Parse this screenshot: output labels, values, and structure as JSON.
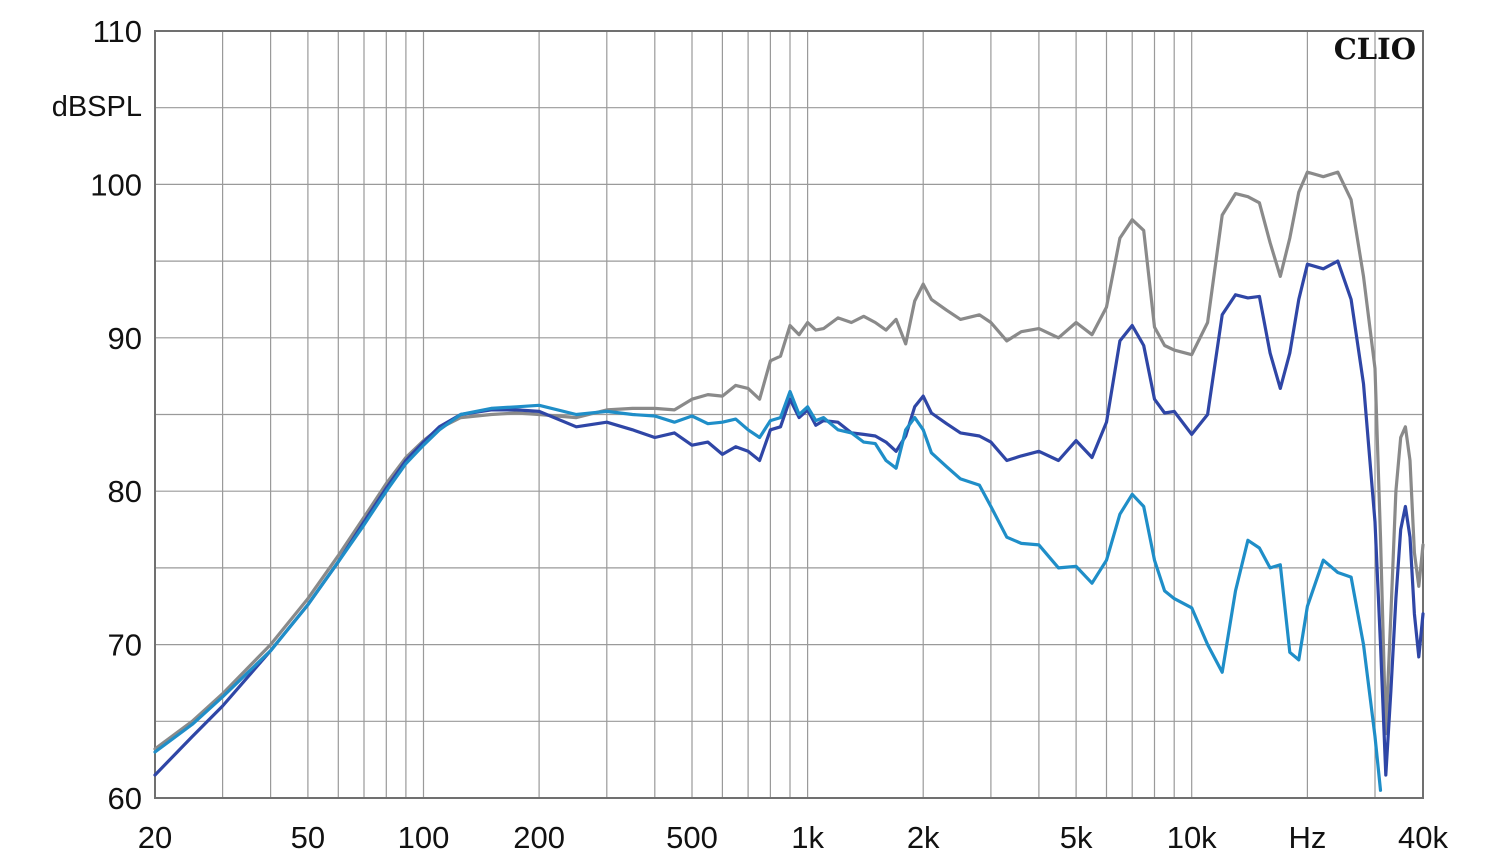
{
  "chart_data": {
    "type": "line",
    "brand": "CLIO",
    "ylabel": "dBSPL",
    "xunit_label": "Hz",
    "xscale": "log",
    "xlim": [
      20,
      40000
    ],
    "ylim": [
      60,
      110
    ],
    "grid": true,
    "x_tick_labels": [
      {
        "value": 20,
        "label": "20"
      },
      {
        "value": 50,
        "label": "50"
      },
      {
        "value": 100,
        "label": "100"
      },
      {
        "value": 200,
        "label": "200"
      },
      {
        "value": 500,
        "label": "500"
      },
      {
        "value": 1000,
        "label": "1k"
      },
      {
        "value": 2000,
        "label": "2k"
      },
      {
        "value": 5000,
        "label": "5k"
      },
      {
        "value": 10000,
        "label": "10k"
      },
      {
        "value": 20000,
        "label": "Hz"
      },
      {
        "value": 40000,
        "label": "40k"
      }
    ],
    "y_tick_labels": [
      {
        "value": 60,
        "label": "60"
      },
      {
        "value": 70,
        "label": "70"
      },
      {
        "value": 80,
        "label": "80"
      },
      {
        "value": 90,
        "label": "90"
      },
      {
        "value": 100,
        "label": "100"
      },
      {
        "value": 110,
        "label": "110"
      }
    ],
    "series": [
      {
        "color": "#8a8a8a",
        "points": [
          [
            20,
            63.2
          ],
          [
            25,
            65.0
          ],
          [
            30,
            66.8
          ],
          [
            40,
            70.0
          ],
          [
            50,
            73.0
          ],
          [
            60,
            75.8
          ],
          [
            70,
            78.3
          ],
          [
            80,
            80.5
          ],
          [
            90,
            82.2
          ],
          [
            100,
            83.3
          ],
          [
            110,
            84.1
          ],
          [
            125,
            84.8
          ],
          [
            150,
            85.0
          ],
          [
            175,
            85.1
          ],
          [
            200,
            85.0
          ],
          [
            250,
            84.8
          ],
          [
            300,
            85.3
          ],
          [
            350,
            85.4
          ],
          [
            400,
            85.4
          ],
          [
            450,
            85.3
          ],
          [
            500,
            86.0
          ],
          [
            550,
            86.3
          ],
          [
            600,
            86.2
          ],
          [
            650,
            86.9
          ],
          [
            700,
            86.7
          ],
          [
            750,
            86.0
          ],
          [
            800,
            88.5
          ],
          [
            850,
            88.8
          ],
          [
            900,
            90.8
          ],
          [
            950,
            90.2
          ],
          [
            1000,
            91.0
          ],
          [
            1050,
            90.5
          ],
          [
            1100,
            90.6
          ],
          [
            1200,
            91.3
          ],
          [
            1300,
            91.0
          ],
          [
            1400,
            91.4
          ],
          [
            1500,
            91.0
          ],
          [
            1600,
            90.5
          ],
          [
            1700,
            91.2
          ],
          [
            1800,
            89.6
          ],
          [
            1900,
            92.4
          ],
          [
            2000,
            93.5
          ],
          [
            2100,
            92.5
          ],
          [
            2300,
            91.8
          ],
          [
            2500,
            91.2
          ],
          [
            2800,
            91.5
          ],
          [
            3000,
            91.0
          ],
          [
            3300,
            89.8
          ],
          [
            3600,
            90.4
          ],
          [
            4000,
            90.6
          ],
          [
            4500,
            90.0
          ],
          [
            5000,
            91.0
          ],
          [
            5500,
            90.2
          ],
          [
            6000,
            92.0
          ],
          [
            6500,
            96.5
          ],
          [
            7000,
            97.7
          ],
          [
            7500,
            97.0
          ],
          [
            8000,
            90.7
          ],
          [
            8500,
            89.5
          ],
          [
            9000,
            89.2
          ],
          [
            10000,
            88.9
          ],
          [
            11000,
            91.0
          ],
          [
            12000,
            98.0
          ],
          [
            13000,
            99.4
          ],
          [
            14000,
            99.2
          ],
          [
            15000,
            98.8
          ],
          [
            16000,
            96.2
          ],
          [
            17000,
            94.0
          ],
          [
            18000,
            96.5
          ],
          [
            19000,
            99.5
          ],
          [
            20000,
            100.8
          ],
          [
            22000,
            100.5
          ],
          [
            24000,
            100.8
          ],
          [
            26000,
            99.0
          ],
          [
            28000,
            94.0
          ],
          [
            30000,
            88.0
          ],
          [
            31000,
            77.0
          ],
          [
            32000,
            64.2
          ],
          [
            33000,
            72.0
          ],
          [
            34000,
            80.0
          ],
          [
            35000,
            83.5
          ],
          [
            36000,
            84.2
          ],
          [
            37000,
            82.0
          ],
          [
            38000,
            76.0
          ],
          [
            39000,
            73.8
          ],
          [
            40000,
            76.5
          ]
        ]
      },
      {
        "color": "#2f46a6",
        "points": [
          [
            20,
            61.5
          ],
          [
            25,
            64.0
          ],
          [
            30,
            66.0
          ],
          [
            40,
            69.6
          ],
          [
            50,
            72.6
          ],
          [
            60,
            75.4
          ],
          [
            70,
            78.0
          ],
          [
            80,
            80.2
          ],
          [
            90,
            82.0
          ],
          [
            100,
            83.2
          ],
          [
            110,
            84.2
          ],
          [
            125,
            85.0
          ],
          [
            150,
            85.3
          ],
          [
            175,
            85.3
          ],
          [
            200,
            85.2
          ],
          [
            250,
            84.2
          ],
          [
            300,
            84.5
          ],
          [
            350,
            84.0
          ],
          [
            400,
            83.5
          ],
          [
            450,
            83.8
          ],
          [
            500,
            83.0
          ],
          [
            550,
            83.2
          ],
          [
            600,
            82.4
          ],
          [
            650,
            82.9
          ],
          [
            700,
            82.6
          ],
          [
            750,
            82.0
          ],
          [
            800,
            84.0
          ],
          [
            850,
            84.2
          ],
          [
            900,
            86.0
          ],
          [
            950,
            84.8
          ],
          [
            1000,
            85.3
          ],
          [
            1050,
            84.3
          ],
          [
            1100,
            84.6
          ],
          [
            1200,
            84.5
          ],
          [
            1300,
            83.8
          ],
          [
            1400,
            83.7
          ],
          [
            1500,
            83.6
          ],
          [
            1600,
            83.2
          ],
          [
            1700,
            82.6
          ],
          [
            1800,
            83.6
          ],
          [
            1900,
            85.5
          ],
          [
            2000,
            86.2
          ],
          [
            2100,
            85.1
          ],
          [
            2300,
            84.4
          ],
          [
            2500,
            83.8
          ],
          [
            2800,
            83.6
          ],
          [
            3000,
            83.2
          ],
          [
            3300,
            82.0
          ],
          [
            3600,
            82.3
          ],
          [
            4000,
            82.6
          ],
          [
            4500,
            82.0
          ],
          [
            5000,
            83.3
          ],
          [
            5500,
            82.2
          ],
          [
            6000,
            84.5
          ],
          [
            6500,
            89.8
          ],
          [
            7000,
            90.8
          ],
          [
            7500,
            89.5
          ],
          [
            8000,
            86.0
          ],
          [
            8500,
            85.1
          ],
          [
            9000,
            85.2
          ],
          [
            10000,
            83.7
          ],
          [
            11000,
            85.0
          ],
          [
            12000,
            91.5
          ],
          [
            13000,
            92.8
          ],
          [
            14000,
            92.6
          ],
          [
            15000,
            92.7
          ],
          [
            16000,
            89.0
          ],
          [
            17000,
            86.7
          ],
          [
            18000,
            89.0
          ],
          [
            19000,
            92.5
          ],
          [
            20000,
            94.8
          ],
          [
            22000,
            94.5
          ],
          [
            24000,
            95.0
          ],
          [
            26000,
            92.5
          ],
          [
            28000,
            87.0
          ],
          [
            30000,
            78.0
          ],
          [
            31000,
            70.0
          ],
          [
            32000,
            61.5
          ],
          [
            33000,
            67.0
          ],
          [
            34000,
            73.0
          ],
          [
            35000,
            77.5
          ],
          [
            36000,
            79.0
          ],
          [
            37000,
            77.0
          ],
          [
            38000,
            72.0
          ],
          [
            39000,
            69.2
          ],
          [
            40000,
            72.0
          ]
        ]
      },
      {
        "color": "#1f8ec8",
        "points": [
          [
            20,
            63.0
          ],
          [
            25,
            64.8
          ],
          [
            30,
            66.6
          ],
          [
            40,
            69.6
          ],
          [
            50,
            72.6
          ],
          [
            60,
            75.4
          ],
          [
            70,
            77.8
          ],
          [
            80,
            80.0
          ],
          [
            90,
            81.8
          ],
          [
            100,
            83.0
          ],
          [
            110,
            84.0
          ],
          [
            125,
            85.0
          ],
          [
            150,
            85.4
          ],
          [
            175,
            85.5
          ],
          [
            200,
            85.6
          ],
          [
            250,
            85.0
          ],
          [
            300,
            85.2
          ],
          [
            350,
            85.0
          ],
          [
            400,
            84.9
          ],
          [
            450,
            84.5
          ],
          [
            500,
            84.9
          ],
          [
            550,
            84.4
          ],
          [
            600,
            84.5
          ],
          [
            650,
            84.7
          ],
          [
            700,
            84.0
          ],
          [
            750,
            83.5
          ],
          [
            800,
            84.6
          ],
          [
            850,
            84.8
          ],
          [
            900,
            86.5
          ],
          [
            950,
            85.0
          ],
          [
            1000,
            85.5
          ],
          [
            1050,
            84.6
          ],
          [
            1100,
            84.8
          ],
          [
            1200,
            84.0
          ],
          [
            1300,
            83.8
          ],
          [
            1400,
            83.2
          ],
          [
            1500,
            83.1
          ],
          [
            1600,
            82.0
          ],
          [
            1700,
            81.5
          ],
          [
            1800,
            84.0
          ],
          [
            1900,
            84.8
          ],
          [
            2000,
            84.0
          ],
          [
            2100,
            82.5
          ],
          [
            2300,
            81.6
          ],
          [
            2500,
            80.8
          ],
          [
            2800,
            80.4
          ],
          [
            3000,
            79.0
          ],
          [
            3300,
            77.0
          ],
          [
            3600,
            76.6
          ],
          [
            4000,
            76.5
          ],
          [
            4500,
            75.0
          ],
          [
            5000,
            75.1
          ],
          [
            5500,
            74.0
          ],
          [
            6000,
            75.5
          ],
          [
            6500,
            78.5
          ],
          [
            7000,
            79.8
          ],
          [
            7500,
            79.0
          ],
          [
            8000,
            75.5
          ],
          [
            8500,
            73.5
          ],
          [
            9000,
            73.0
          ],
          [
            10000,
            72.4
          ],
          [
            11000,
            70.0
          ],
          [
            12000,
            68.2
          ],
          [
            13000,
            73.5
          ],
          [
            14000,
            76.8
          ],
          [
            15000,
            76.3
          ],
          [
            16000,
            75.0
          ],
          [
            17000,
            75.2
          ],
          [
            18000,
            69.5
          ],
          [
            19000,
            69.0
          ],
          [
            20000,
            72.5
          ],
          [
            22000,
            75.5
          ],
          [
            24000,
            74.7
          ],
          [
            26000,
            74.4
          ],
          [
            28000,
            70.0
          ],
          [
            30000,
            64.0
          ],
          [
            31000,
            60.5
          ]
        ]
      }
    ]
  }
}
